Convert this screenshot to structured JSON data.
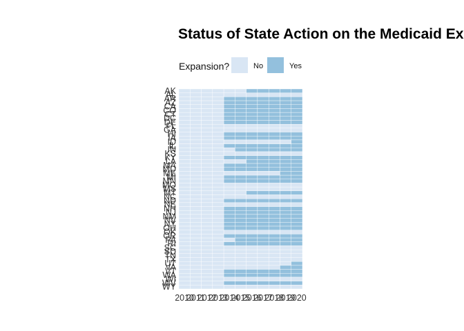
{
  "chart_data": {
    "type": "heatmap",
    "title": "Status of State Action on the Medicaid Expansion",
    "xlabel": "",
    "ylabel": "",
    "legend": {
      "title": "Expansion?",
      "position": "top",
      "entries": [
        {
          "label": "No",
          "color": "#d9e6f4"
        },
        {
          "label": "Yes",
          "color": "#93c0dd"
        }
      ]
    },
    "x": [
      2010,
      2011,
      2012,
      2013,
      2014,
      2015,
      2016,
      2017,
      2018,
      2019,
      2020
    ],
    "y": [
      "AK",
      "AL",
      "AR",
      "AZ",
      "CA",
      "CO",
      "CT",
      "DC",
      "DE",
      "FL",
      "GA",
      "HI",
      "IA",
      "ID",
      "IL",
      "IN",
      "KS",
      "KY",
      "LA",
      "MA",
      "MD",
      "ME",
      "MI",
      "MN",
      "MO",
      "MS",
      "MT",
      "NC",
      "ND",
      "NE",
      "NH",
      "NJ",
      "NM",
      "NV",
      "NY",
      "OH",
      "OK",
      "OR",
      "PA",
      "RI",
      "SC",
      "SD",
      "TN",
      "TX",
      "UT",
      "VA",
      "VT",
      "WA",
      "WI",
      "WV",
      "WY"
    ],
    "first_expansion_year": {
      "AK": 2016,
      "AL": null,
      "AR": 2014,
      "AZ": 2014,
      "CA": 2014,
      "CO": 2014,
      "CT": 2014,
      "DC": 2014,
      "DE": 2014,
      "FL": null,
      "GA": null,
      "HI": 2014,
      "IA": 2014,
      "ID": 2020,
      "IL": 2014,
      "IN": 2015,
      "KS": null,
      "KY": 2014,
      "LA": 2016,
      "MA": 2014,
      "MD": 2014,
      "ME": 2019,
      "MI": 2014,
      "MN": 2014,
      "MO": null,
      "MS": null,
      "MT": 2016,
      "NC": null,
      "ND": 2014,
      "NE": null,
      "NH": 2014,
      "NJ": 2014,
      "NM": 2014,
      "NV": 2014,
      "NY": 2014,
      "OH": 2014,
      "OK": null,
      "OR": 2014,
      "PA": 2015,
      "RI": 2014,
      "SC": null,
      "SD": null,
      "TN": null,
      "TX": null,
      "UT": 2020,
      "VA": 2019,
      "VT": 2014,
      "WA": 2014,
      "WI": null,
      "WV": 2014,
      "WY": null
    },
    "colors": {
      "no": "#d9e6f4",
      "yes": "#93c0dd",
      "grid": "#ffffff"
    },
    "grid": false
  }
}
